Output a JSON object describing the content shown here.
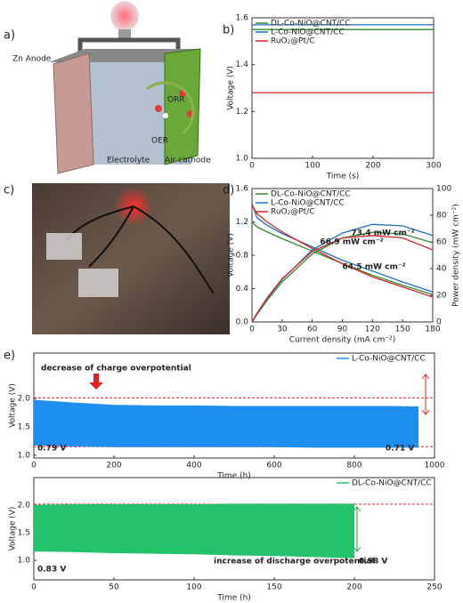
{
  "panel_labels": [
    "a)",
    "b)",
    "c)",
    "d)",
    "e)"
  ],
  "illustration": {
    "zn_anode": "Zn Anode",
    "orr": "ORR",
    "oer": "OER",
    "electrolyte": "Electrolyte",
    "air_cathode": "Air cathode"
  },
  "chart_data": [
    {
      "type": "line",
      "x_label": "Time (s)",
      "y_label": "Voltage (V)",
      "x": [
        0,
        50,
        100,
        150,
        200,
        250,
        300
      ],
      "series": [
        {
          "name": "DL-Co-NiO@CNT/CC",
          "color": "#2e8b2e",
          "values": [
            1.55,
            1.55,
            1.55,
            1.55,
            1.55,
            1.55,
            1.55
          ]
        },
        {
          "name": "L-Co-NiO@CNT/CC",
          "color": "#1f6fc0",
          "values": [
            1.57,
            1.57,
            1.57,
            1.57,
            1.57,
            1.57,
            1.57
          ]
        },
        {
          "name": "RuO₂@Pt/C",
          "color": "#d62728",
          "values": [
            1.28,
            1.28,
            1.28,
            1.28,
            1.28,
            1.28,
            1.28
          ]
        }
      ],
      "xlim": [
        0,
        300
      ],
      "xticks": [
        0,
        100,
        200,
        300
      ],
      "ylim": [
        1.0,
        1.6
      ],
      "yticks": [
        {
          "value": 1,
          "label": "1.0"
        },
        1.2,
        1.4,
        1.6
      ],
      "legend": "upper left"
    },
    {
      "type": "line",
      "x_label": "Current density (mA cm⁻²)",
      "y_label": "Voltage (V)",
      "y2_label": "Power density (mW cm⁻²)",
      "x": [
        0,
        5,
        15,
        30,
        60,
        90,
        120,
        150,
        180
      ],
      "series": [
        {
          "name": "DL-Co-NiO@CNT/CC",
          "color": "#2e8b2e",
          "values": [
            1.2,
            1.14,
            1.08,
            1.0,
            0.85,
            0.7,
            0.56,
            0.44,
            0.33
          ]
        },
        {
          "name": "L-Co-NiO@CNT/CC",
          "color": "#1f6fc0",
          "values": [
            1.42,
            1.25,
            1.16,
            1.06,
            0.9,
            0.74,
            0.61,
            0.48,
            0.36
          ]
        },
        {
          "name": "RuO₂@Pt/C",
          "color": "#d62728",
          "values": [
            1.4,
            1.3,
            1.2,
            1.08,
            0.88,
            0.7,
            0.54,
            0.42,
            0.3
          ]
        },
        {
          "color": "#2e8b2e",
          "axis": "y2",
          "values": [
            0,
            5.7,
            16.2,
            30,
            51,
            63,
            67.2,
            66,
            59.4
          ]
        },
        {
          "color": "#1f6fc0",
          "axis": "y2",
          "values": [
            0,
            6.3,
            17.4,
            31.8,
            54,
            66.6,
            73.2,
            72,
            64.8
          ]
        },
        {
          "color": "#d62728",
          "axis": "y2",
          "values": [
            0,
            6.5,
            18,
            32.4,
            52.8,
            63,
            64.8,
            63,
            54
          ]
        }
      ],
      "xlim": [
        0,
        180
      ],
      "xticks": [
        0,
        30,
        60,
        90,
        120,
        150,
        180
      ],
      "ylim": [
        0,
        1.6
      ],
      "yticks": [
        {
          "value": 0,
          "label": "0.0"
        },
        0.4,
        0.8,
        1.2,
        1.6
      ],
      "y2lim": [
        0,
        100
      ],
      "y2ticks": [
        0,
        20,
        40,
        60,
        80,
        100
      ],
      "annotations": [
        "73.4 mW cm⁻²",
        "66.9 mW cm⁻²",
        "64.5 mW cm⁻²"
      ],
      "legend": "upper left"
    },
    {
      "type": "band",
      "x_label": "Time (h)",
      "y_label": "Voltage (V)",
      "x": [
        0,
        100,
        200,
        300,
        400,
        500,
        600,
        700,
        800,
        900,
        960
      ],
      "series": [
        {
          "name": "L-Co-NiO@CNT/CC",
          "color": "#1e8ff0",
          "upper": [
            1.97,
            1.92,
            1.88,
            1.87,
            1.87,
            1.86,
            1.86,
            1.86,
            1.86,
            1.86,
            1.85
          ],
          "lower": [
            1.18,
            1.16,
            1.15,
            1.15,
            1.15,
            1.15,
            1.15,
            1.14,
            1.14,
            1.14,
            1.14
          ]
        }
      ],
      "xlim": [
        0,
        1000
      ],
      "xticks": [
        0,
        200,
        400,
        600,
        800,
        1000
      ],
      "ylim": [
        0.95,
        2.8
      ],
      "yticks": [
        {
          "value": 1,
          "label": "1.0"
        },
        1.5,
        {
          "value": 2,
          "label": "2.0"
        }
      ],
      "reference_lines": [
        2.01,
        1.15
      ],
      "annotations": [
        "decrease of charge overpotential",
        "0.79 V",
        "0.71 V"
      ],
      "legend": "upper right"
    },
    {
      "type": "band",
      "x_label": "Time (h)",
      "y_label": "Voltage (V)",
      "x": [
        0,
        25,
        50,
        75,
        100,
        125,
        150,
        175,
        200
      ],
      "series": [
        {
          "name": "DL-Co-NiO@CNT/CC",
          "color": "#22c36a",
          "upper": [
            2.0,
            2.01,
            2.01,
            2.01,
            2.01,
            2.02,
            2.02,
            2.02,
            2.02
          ],
          "lower": [
            1.17,
            1.16,
            1.14,
            1.13,
            1.12,
            1.1,
            1.09,
            1.07,
            1.05
          ]
        }
      ],
      "xlim": [
        0,
        250
      ],
      "xticks": [
        0,
        50,
        100,
        150,
        200,
        250
      ],
      "ylim": [
        0.65,
        2.5
      ],
      "yticks": [
        {
          "value": 1,
          "label": "1.0"
        },
        1.5,
        {
          "value": 2,
          "label": "2.0"
        }
      ],
      "reference_lines": [
        2.02
      ],
      "annotations": [
        "0.83 V",
        "increase of discharge overpotential",
        "0.98 V"
      ],
      "legend": "upper right"
    }
  ]
}
